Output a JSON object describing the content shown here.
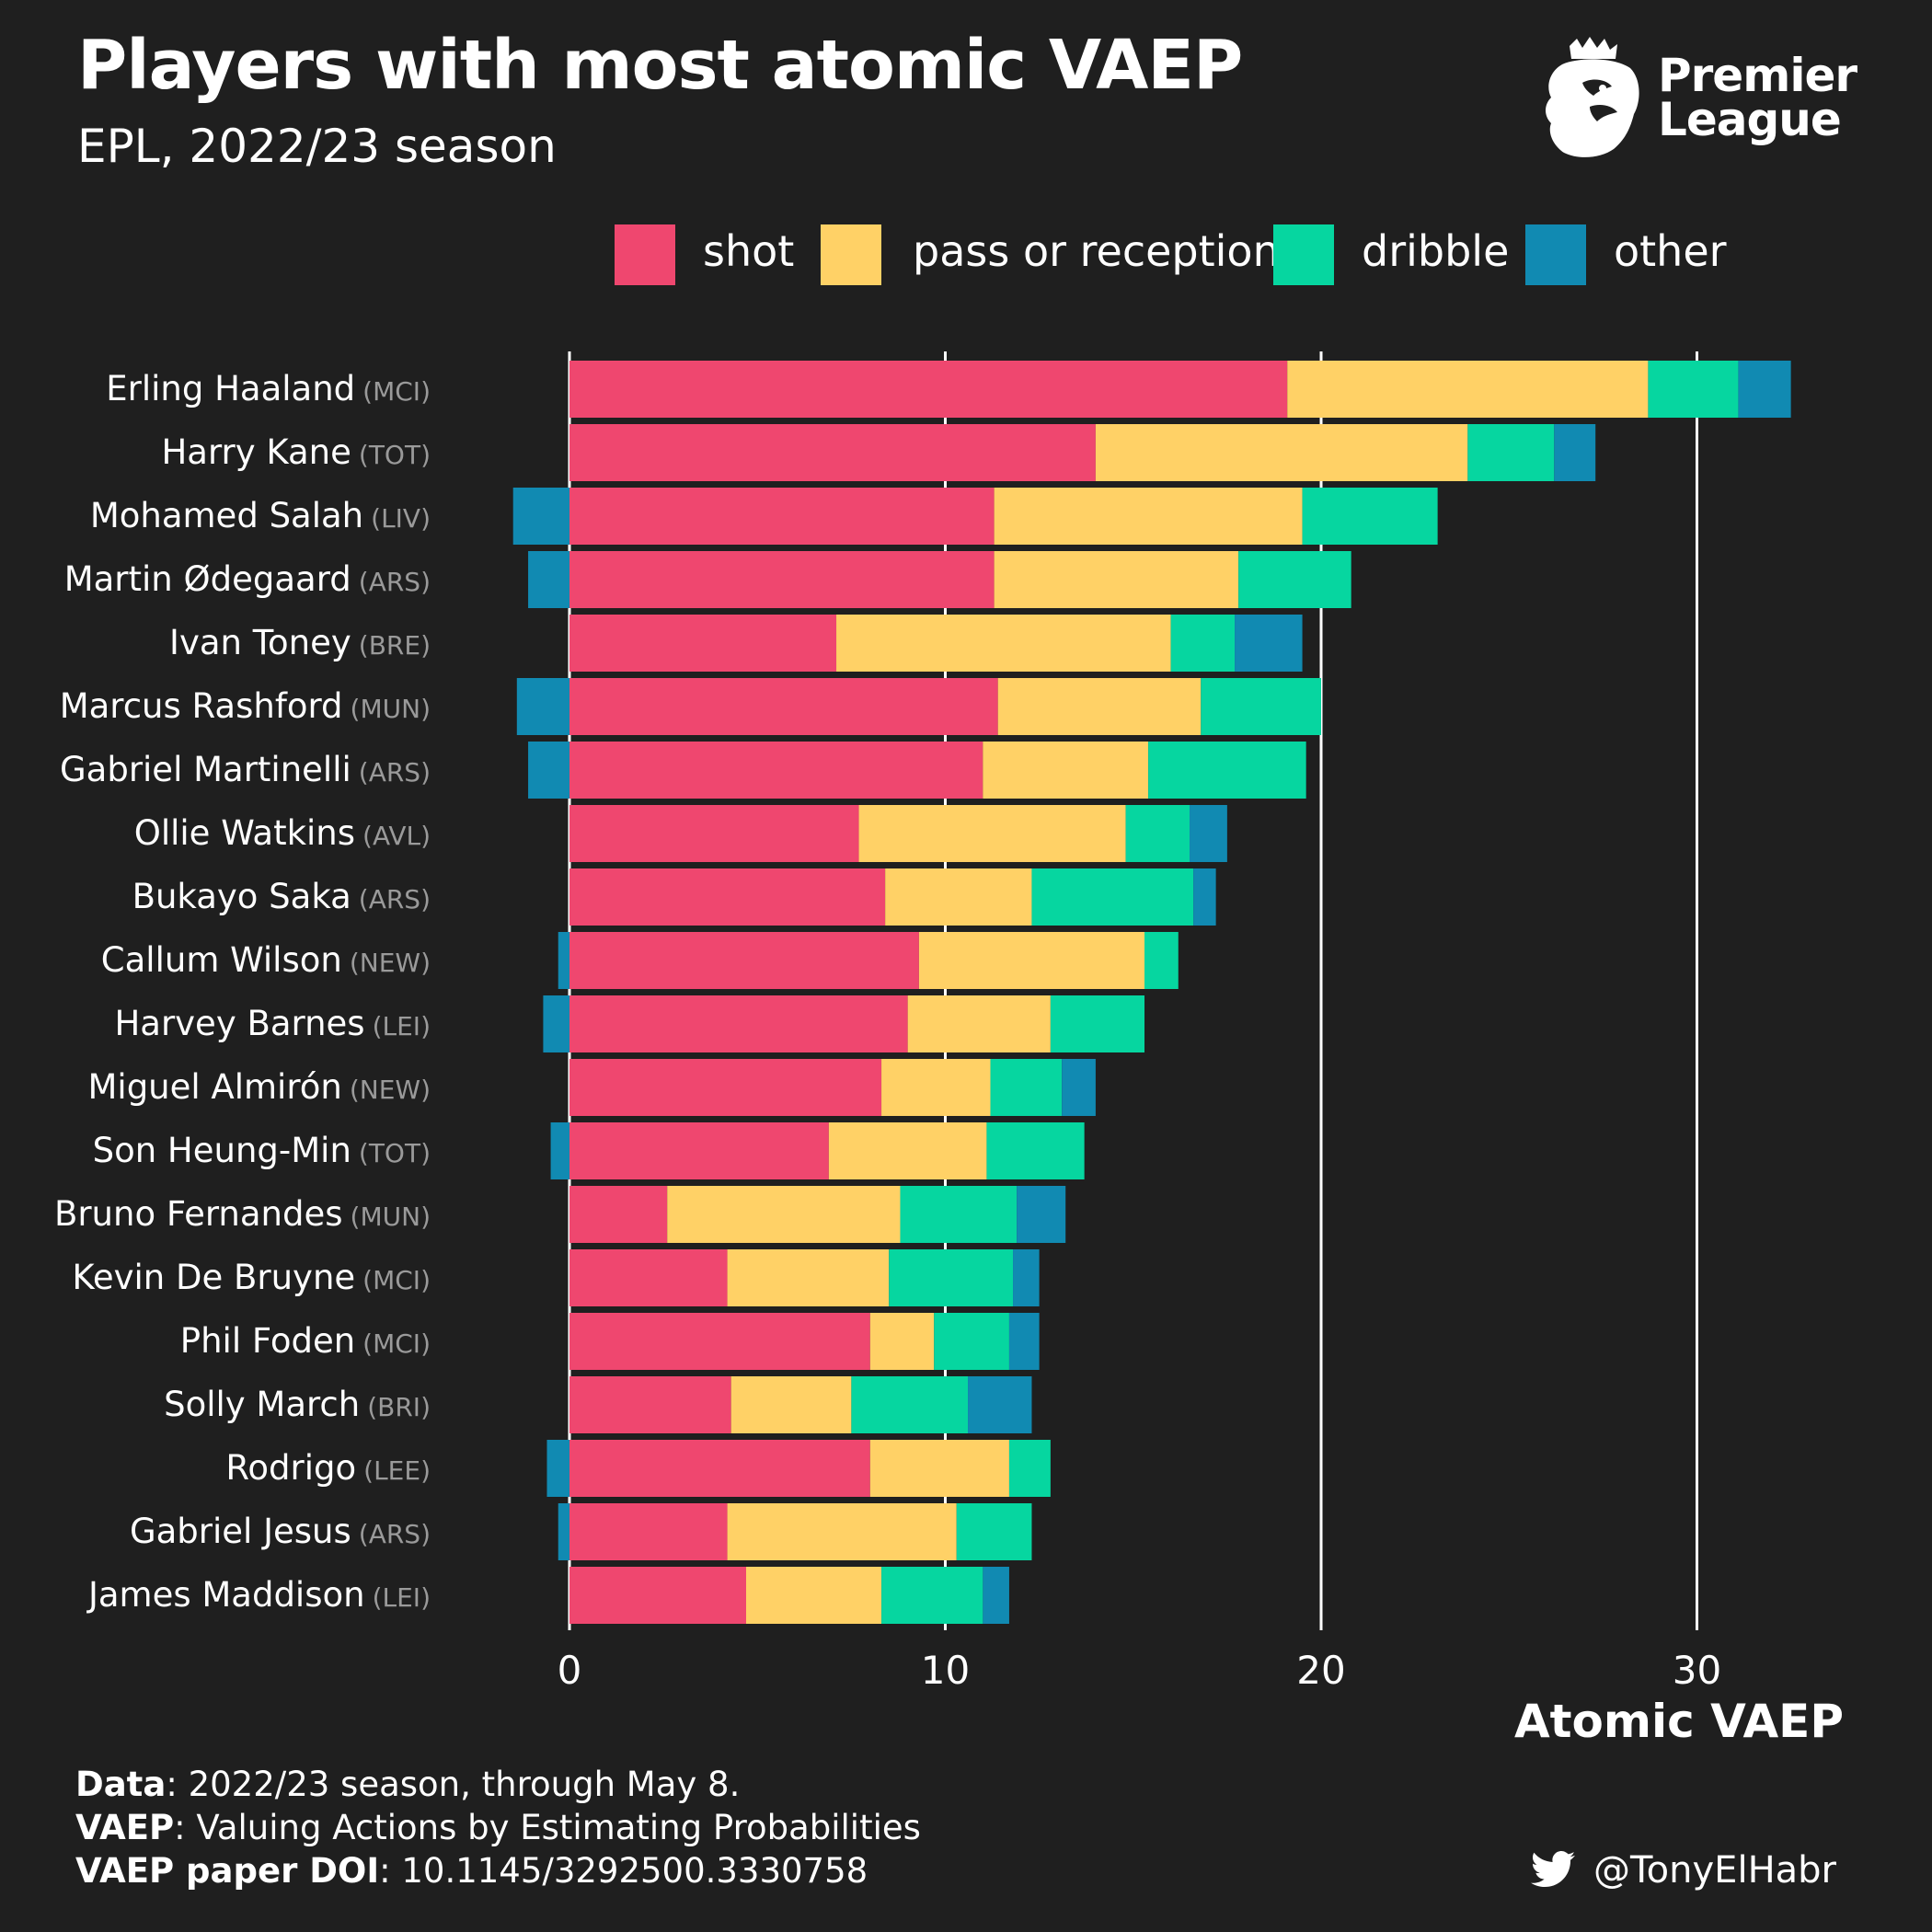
{
  "header": {
    "title": "Players with most atomic VAEP",
    "subtitle": "EPL, 2022/23 season",
    "logo_text_1": "Premier",
    "logo_text_2": "League",
    "logo_icon": "premier-league-lion-icon"
  },
  "footer": {
    "line1_bold": "Data",
    "line1_text": ": 2022/23 season, through May 8.",
    "line2_bold": "VAEP",
    "line2_text": ": Valuing Actions by Estimating Probabilities",
    "line3_bold": "VAEP paper DOI",
    "line3_text": ": 10.1145/3292500.3330758",
    "handle": "@TonyElHabr",
    "handle_icon": "twitter-icon"
  },
  "colors": {
    "background": "#1f1f1f",
    "shot": "#ef476f",
    "pass or reception": "#ffd166",
    "dribble": "#06d6a0",
    "other": "#118ab2"
  },
  "chart_data": {
    "type": "bar",
    "orientation": "horizontal",
    "stacked": true,
    "title": "Players with most atomic VAEP",
    "subtitle": "EPL, 2022/23 season",
    "xlabel": "Atomic VAEP",
    "ylabel": "",
    "xlim": [
      -1.5,
      33.5
    ],
    "xticks": [
      0,
      10,
      20,
      30
    ],
    "grid": "vertical major",
    "legend": "top",
    "legend_entries": [
      "shot",
      "pass or reception",
      "dribble",
      "other"
    ],
    "categories": [
      {
        "player": "Erling Haaland",
        "team": "(MCI)"
      },
      {
        "player": "Harry Kane",
        "team": "(TOT)"
      },
      {
        "player": "Mohamed Salah",
        "team": "(LIV)"
      },
      {
        "player": "Martin Ødegaard",
        "team": "(ARS)"
      },
      {
        "player": "Ivan Toney",
        "team": "(BRE)"
      },
      {
        "player": "Marcus Rashford",
        "team": "(MUN)"
      },
      {
        "player": "Gabriel Martinelli",
        "team": "(ARS)"
      },
      {
        "player": "Ollie Watkins",
        "team": "(AVL)"
      },
      {
        "player": "Bukayo Saka",
        "team": "(ARS)"
      },
      {
        "player": "Callum Wilson",
        "team": "(NEW)"
      },
      {
        "player": "Harvey Barnes",
        "team": "(LEI)"
      },
      {
        "player": "Miguel Almirón",
        "team": "(NEW)"
      },
      {
        "player": "Son Heung-Min",
        "team": "(TOT)"
      },
      {
        "player": "Bruno Fernandes",
        "team": "(MUN)"
      },
      {
        "player": "Kevin De Bruyne",
        "team": "(MCI)"
      },
      {
        "player": "Phil Foden",
        "team": "(MCI)"
      },
      {
        "player": "Solly March",
        "team": "(BRI)"
      },
      {
        "player": "Rodrigo",
        "team": "(LEE)"
      },
      {
        "player": "Gabriel Jesus",
        "team": "(ARS)"
      },
      {
        "player": "James Maddison",
        "team": "(LEI)"
      }
    ],
    "series": [
      {
        "name": "shot",
        "values": [
          19.1,
          14.0,
          11.3,
          11.3,
          7.1,
          11.4,
          11.0,
          7.7,
          8.4,
          9.3,
          9.0,
          8.3,
          6.9,
          2.6,
          4.2,
          8.0,
          4.3,
          8.0,
          4.2,
          4.7
        ]
      },
      {
        "name": "pass or reception",
        "values": [
          9.6,
          9.9,
          8.2,
          6.5,
          8.9,
          5.4,
          4.4,
          7.1,
          3.9,
          6.0,
          3.8,
          2.9,
          4.2,
          6.2,
          4.3,
          1.7,
          3.2,
          3.7,
          6.1,
          3.6
        ]
      },
      {
        "name": "dribble",
        "values": [
          2.4,
          2.3,
          3.6,
          3.0,
          1.7,
          3.2,
          4.2,
          1.7,
          4.3,
          0.9,
          2.5,
          1.9,
          2.6,
          3.1,
          3.3,
          2.0,
          3.1,
          1.1,
          2.0,
          2.7
        ]
      },
      {
        "name": "other",
        "values": [
          1.4,
          1.1,
          -1.5,
          -1.1,
          1.8,
          -1.4,
          -1.1,
          1.0,
          0.6,
          -0.3,
          -0.7,
          0.9,
          -0.5,
          1.3,
          0.7,
          0.8,
          1.7,
          -0.6,
          -0.3,
          0.7
        ]
      }
    ]
  }
}
